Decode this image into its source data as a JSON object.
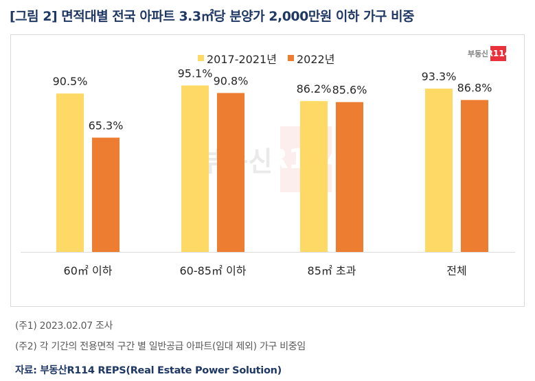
{
  "title": "[그림 2] 면적대별 전국 아파트 3.3㎡당 분양가 2,000만원 이하 가구 비중",
  "logo": {
    "text": "부동산",
    "box": "R114"
  },
  "notes": [
    "(주1) 2023.02.07 조사",
    "(주2) 각 기간의 전용면적 구간 별 일반공급 아파트(임대 제외) 가구 비중임"
  ],
  "source": "자료: 부동산R114 REPS(Real Estate Power Solution)",
  "chart_data": {
    "type": "bar",
    "title": "[그림 2] 면적대별 전국 아파트 3.3㎡당 분양가 2,000만원 이하 가구 비중",
    "xlabel": "",
    "ylabel": "",
    "ylim": [
      0,
      100
    ],
    "grid": false,
    "legend_position": "top-center",
    "categories": [
      "60㎡ 이하",
      "60-85㎡ 이하",
      "85㎡ 초과",
      "전체"
    ],
    "series": [
      {
        "name": "2017-2021년",
        "color": "#ffd966",
        "values": [
          90.5,
          95.1,
          86.2,
          93.3
        ],
        "labels": [
          "90.5%",
          "95.1%",
          "86.2%",
          "93.3%"
        ]
      },
      {
        "name": "2022년",
        "color": "#ed7d31",
        "values": [
          65.3,
          90.8,
          85.6,
          86.8
        ],
        "labels": [
          "65.3%",
          "90.8%",
          "85.6%",
          "86.8%"
        ]
      }
    ]
  }
}
